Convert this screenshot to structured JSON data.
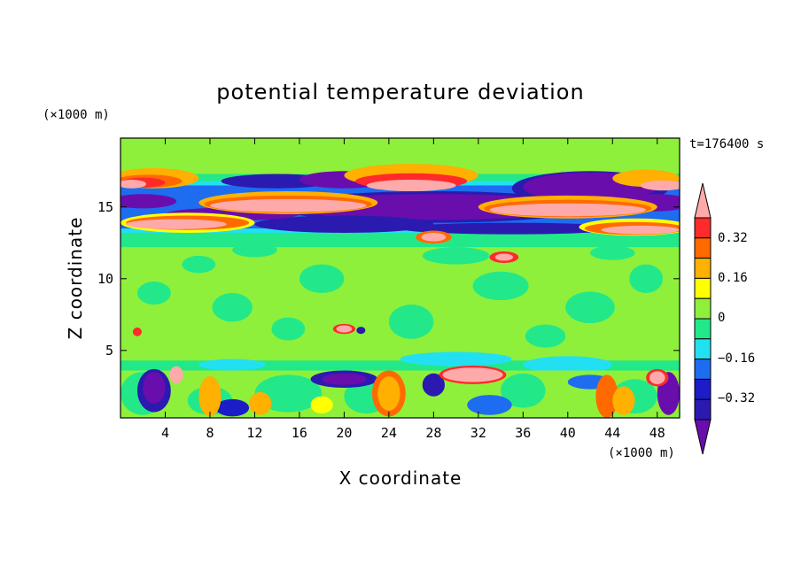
{
  "chart_data": {
    "type": "heatmap",
    "title": "potential temperature deviation",
    "xlabel": "X coordinate",
    "ylabel": "Z coordinate",
    "x_unit": "(×1000 m)",
    "y_unit": "(×1000 m)",
    "time_label": "t=176400 s",
    "xlim": [
      0,
      50
    ],
    "ylim": [
      0.3,
      19.8
    ],
    "x_ticks": [
      4,
      8,
      12,
      16,
      20,
      24,
      28,
      32,
      36,
      40,
      44,
      48
    ],
    "y_ticks": [
      5,
      10,
      15
    ],
    "colorbar": {
      "colors": [
        "#6a0dad",
        "#2b1ab0",
        "#1c1cc8",
        "#1e6cf0",
        "#22e0f2",
        "#22e88a",
        "#8ef03a",
        "#ffff00",
        "#ffb000",
        "#ff6a00",
        "#ff2a2a",
        "#ffaaaa"
      ],
      "tick_labels": [
        "0.32",
        "0.16",
        "0",
        "−0.16",
        "−0.32"
      ],
      "tick_values": [
        0.32,
        0.16,
        0,
        -0.16,
        -0.32
      ],
      "extend": "both"
    },
    "features": [
      {
        "z_range": [
          12.8,
          17.5
        ],
        "description_level": "alternating warm/cold layers",
        "values": [
          -0.4,
          0.4
        ]
      },
      {
        "z_range": [
          4.5,
          12.5
        ],
        "dominant_value": 0.0
      },
      {
        "z_range": [
          0.3,
          4.0
        ],
        "values": [
          -0.4,
          0.4
        ]
      }
    ]
  }
}
